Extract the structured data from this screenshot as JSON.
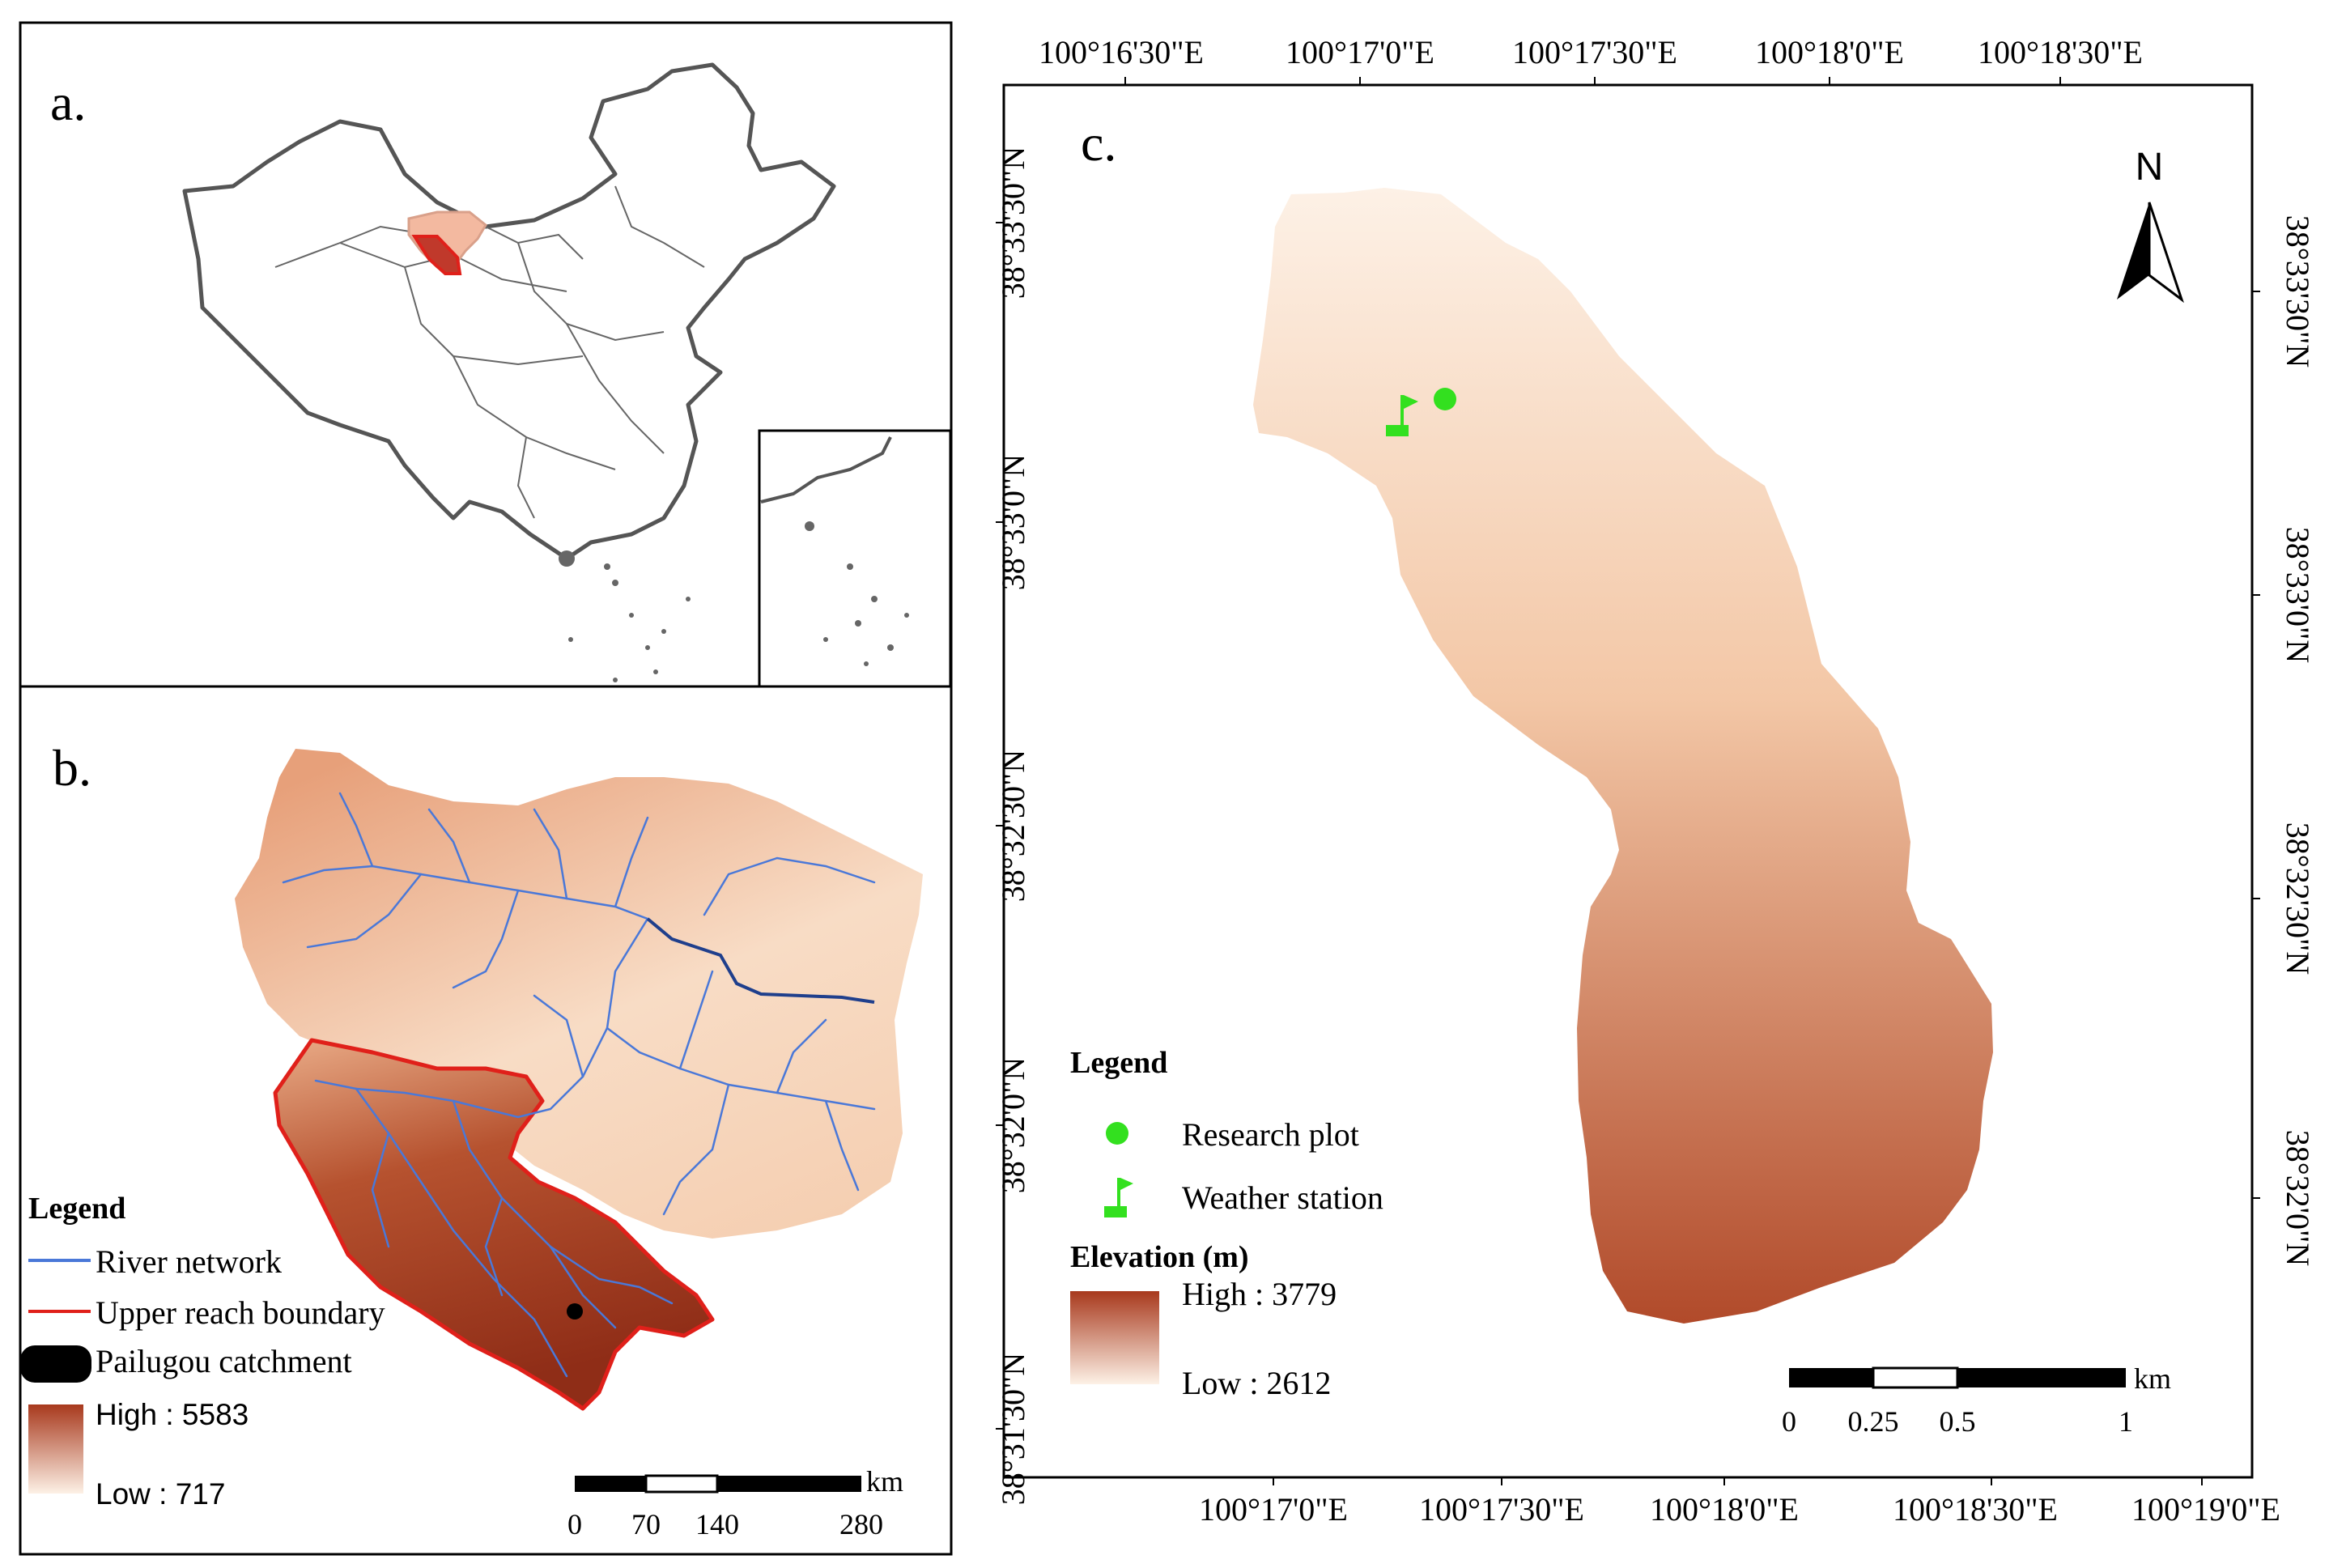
{
  "panel_a": {
    "label": "a."
  },
  "panel_b": {
    "label": "b.",
    "legend": {
      "title": "Legend",
      "river": "River network",
      "boundary": "Upper reach boundary",
      "catchment": "Pailugou catchment",
      "high": "High : 5583",
      "low": "Low : 717"
    },
    "scale": {
      "ticks": [
        "0",
        "70",
        "140",
        "280"
      ],
      "unit": "km"
    }
  },
  "panel_c": {
    "label": "c.",
    "north": "N",
    "top_axis": [
      "100°16'30\"E",
      "100°17'0\"E",
      "100°17'30\"E",
      "100°18'0\"E",
      "100°18'30\"E"
    ],
    "bottom_axis": [
      "100°17'0\"E",
      "100°17'30\"E",
      "100°18'0\"E",
      "100°18'30\"E",
      "100°19'0\"E"
    ],
    "left_axis": [
      "38°33'30\"N",
      "38°33'0\"N",
      "38°32'30\"N",
      "38°32'0\"N",
      "38°31'30\"N"
    ],
    "right_axis": [
      "38°33'30\"N",
      "38°33'0\"N",
      "38°32'30\"N",
      "38°32'0\"N"
    ],
    "legend": {
      "title": "Legend",
      "plot": "Research plot",
      "station": "Weather station",
      "elev_title": "Elevation (m)",
      "high": "High : 3779",
      "low": "Low : 2612"
    },
    "scale": {
      "ticks": [
        "0",
        "0.25",
        "0.5",
        "1"
      ],
      "unit": "km"
    }
  },
  "colors": {
    "elev_high": "#a8391d",
    "elev_low": "#fdf1e6",
    "river": "#4a78d8",
    "boundary": "#e0201a",
    "marker": "#33e01f"
  }
}
